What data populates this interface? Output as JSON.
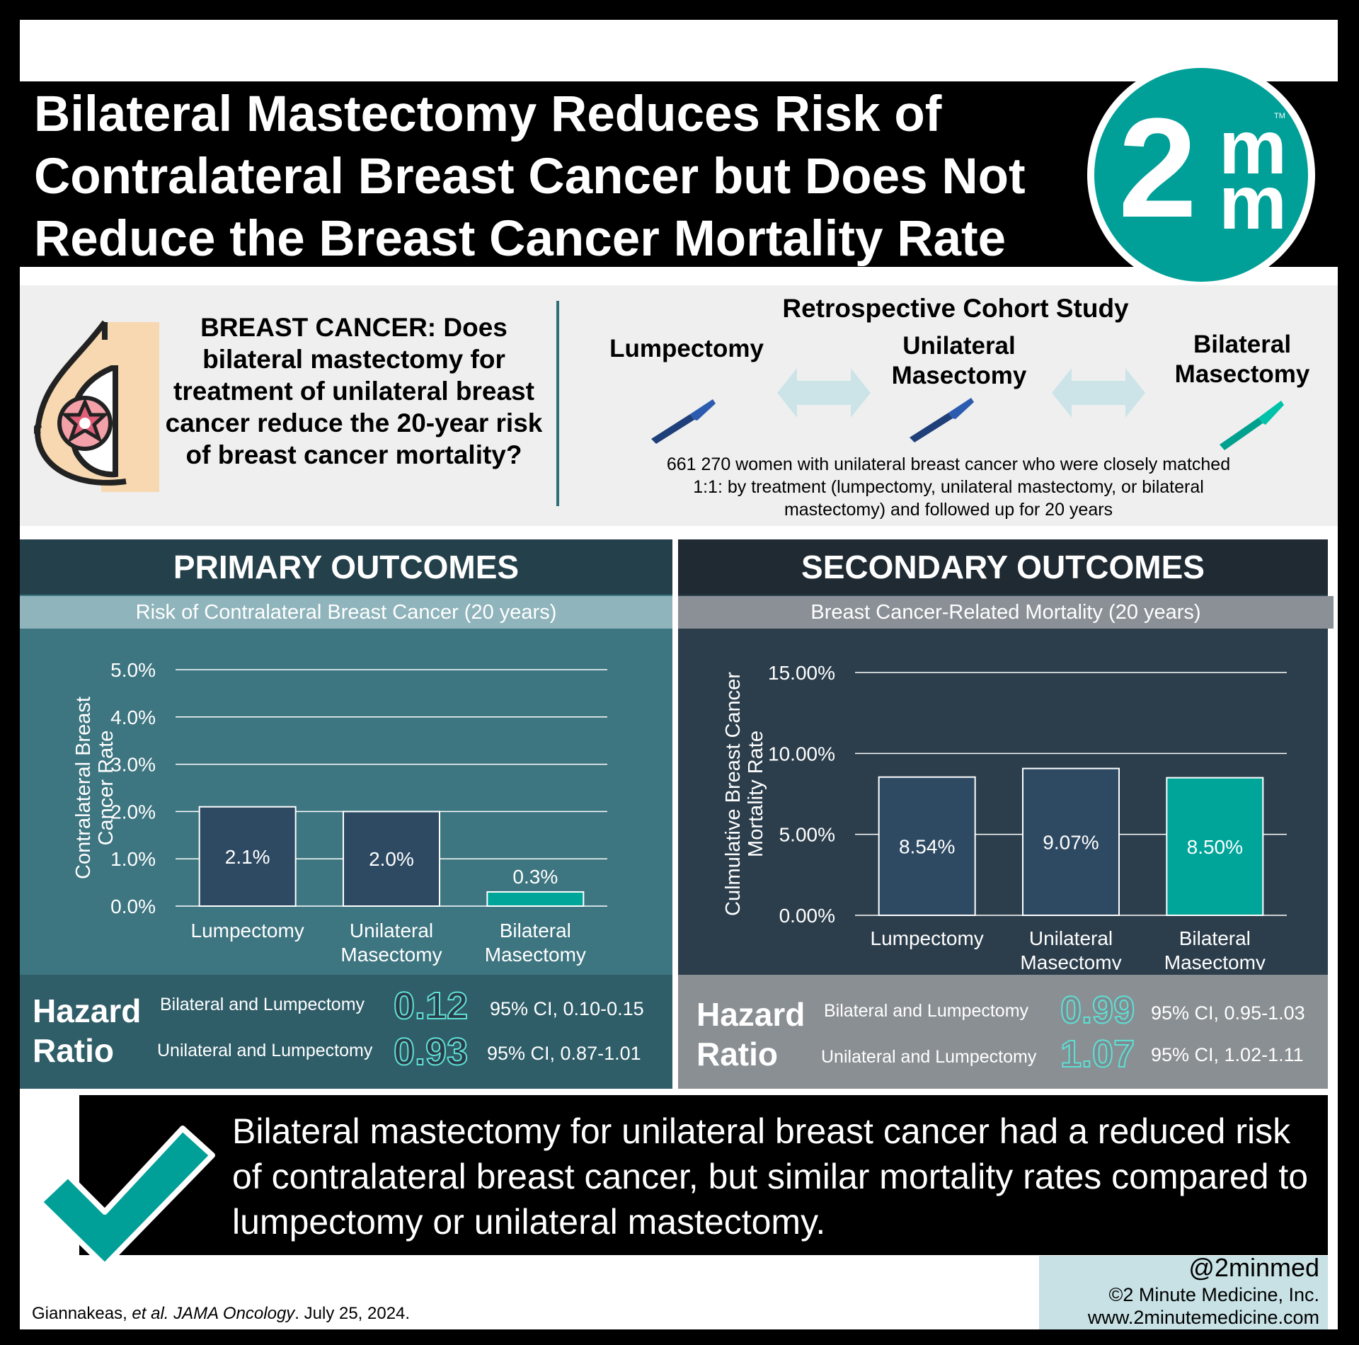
{
  "title": "Bilateral Mastectomy Reduces Risk of Contralateral Breast Cancer but Does Not Reduce the Breast Cancer Mortality Rate",
  "logo": {
    "digit": "2",
    "m_top": "m",
    "m_bottom": "m",
    "tm": "TM"
  },
  "question": "BREAST CANCER: Does bilateral mastectomy for treatment of unilateral breast cancer reduce the 20-year risk of breast cancer mortality?",
  "study": {
    "title": "Retrospective Cohort Study",
    "arm1": "Lumpectomy",
    "arm2": "Unilateral Masectomy",
    "arm3": "Bilateral Masectomy",
    "description": "661 270 women with unilateral breast cancer who were closely matched 1:1: by treatment (lumpectomy, unilateral mastectomy, or bilateral mastectomy) and followed up for 20 years"
  },
  "primary": {
    "heading": "PRIMARY OUTCOMES",
    "subheading": "Risk of Contralateral Breast Cancer (20 years)",
    "hr_word1": "Hazard",
    "hr_word2": "Ratio",
    "hr1_label": "Bilateral and Lumpectomy",
    "hr1_value": "0.12",
    "hr1_ci": "95% CI, 0.10-0.15",
    "hr2_label": "Unilateral and Lumpectomy",
    "hr2_value": "0.93",
    "hr2_ci": "95% CI, 0.87-1.01"
  },
  "secondary": {
    "heading": "SECONDARY OUTCOMES",
    "subheading": "Breast Cancer-Related Mortality (20 years)",
    "hr_word1": "Hazard",
    "hr_word2": "Ratio",
    "hr1_label": "Bilateral and Lumpectomy",
    "hr1_value": "0.99",
    "hr1_ci": "95% CI, 0.95-1.03",
    "hr2_label": "Unilateral and Lumpectomy",
    "hr2_value": "1.07",
    "hr2_ci": "95% CI, 1.02-1.11"
  },
  "chart_data": [
    {
      "type": "bar",
      "categories": [
        "Lumpectomy",
        "Unilateral Masectomy",
        "Bilateral Masectomy"
      ],
      "values": [
        2.1,
        2.0,
        0.3
      ],
      "data_labels": [
        "2.1%",
        "2.0%",
        "0.3%"
      ],
      "ylabel": "Contralateral Breast Cancer Rate",
      "ylim": [
        0,
        5
      ],
      "yticks": [
        "0.0%",
        "1.0%",
        "2.0%",
        "3.0%",
        "4.0%",
        "5.0%"
      ],
      "grid": true,
      "colors": [
        "#2e4a63",
        "#2e4a63",
        "#00a59a"
      ]
    },
    {
      "type": "bar",
      "categories": [
        "Lumpectomy",
        "Unilateral Masectomy",
        "Bilateral Masectomy"
      ],
      "values": [
        8.54,
        9.07,
        8.5
      ],
      "data_labels": [
        "8.54%",
        "9.07%",
        "8.50%"
      ],
      "ylabel": "Culmulative Breast Cancer Mortality Rate",
      "ylim": [
        0,
        15
      ],
      "yticks": [
        "0.00%",
        "5.00%",
        "10.00%",
        "15.00%"
      ],
      "grid": true,
      "colors": [
        "#2e4a63",
        "#2e4a63",
        "#00a59a"
      ]
    }
  ],
  "conclusion": "Bilateral mastectomy for unilateral breast cancer had a reduced risk of contralateral breast cancer, but similar mortality rates compared to lumpectomy or unilateral mastectomy.",
  "footer": {
    "handle": "@2minmed",
    "copyright": "©2 Minute Medicine, Inc.",
    "website": "www.2minutemedicine.com",
    "citation_author": "Giannakeas, ",
    "citation_etal": "et al. JAMA Oncology",
    "citation_date": ". July 25, 2024."
  },
  "colors": {
    "teal": "#00a098",
    "navy_bar": "#2e4a63",
    "bilateral_bar": "#00a59a"
  }
}
